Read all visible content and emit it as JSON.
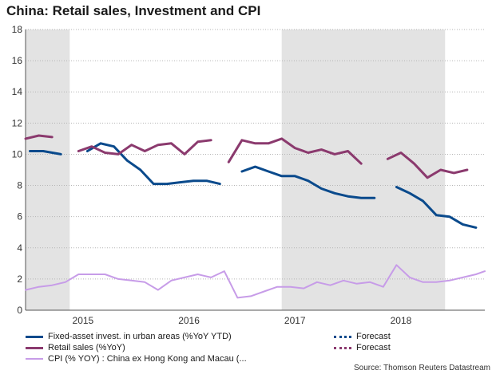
{
  "chart_data": {
    "type": "line",
    "title": "China: Retail sales, Investment and CPI",
    "ylim": [
      0,
      18
    ],
    "yticks": [
      0,
      2,
      4,
      6,
      8,
      10,
      12,
      14,
      16,
      18
    ],
    "year_labels": [
      {
        "label": "2015",
        "month": 6.5
      },
      {
        "label": "2016",
        "month": 18.5
      },
      {
        "label": "2017",
        "month": 30.5
      },
      {
        "label": "2018",
        "month": 42.5
      }
    ],
    "shaded_ranges": [
      [
        0,
        5
      ],
      [
        29,
        47.5
      ]
    ],
    "x_range": [
      0,
      52
    ],
    "series": [
      {
        "name": "Fixed-asset invest. in urban areas (%YoY YTD)",
        "color": "#0a4a8c",
        "points": [
          [
            0.5,
            10.2
          ],
          [
            2,
            10.2
          ],
          [
            4,
            10.0
          ],
          [
            null,
            null
          ],
          [
            7,
            10.2
          ],
          [
            8.5,
            10.7
          ],
          [
            10,
            10.5
          ],
          [
            11.5,
            9.6
          ],
          [
            13,
            9.0
          ],
          [
            14.5,
            8.1
          ],
          [
            16,
            8.1
          ],
          [
            17.5,
            8.2
          ],
          [
            19,
            8.3
          ],
          [
            20.5,
            8.3
          ],
          [
            22,
            8.1
          ],
          [
            null,
            null
          ],
          [
            24.5,
            8.9
          ],
          [
            26,
            9.2
          ],
          [
            27.5,
            8.9
          ],
          [
            29,
            8.6
          ],
          [
            30.5,
            8.6
          ],
          [
            32,
            8.3
          ],
          [
            33.5,
            7.8
          ],
          [
            35,
            7.5
          ],
          [
            36.5,
            7.3
          ],
          [
            38,
            7.2
          ],
          [
            39.5,
            7.2
          ],
          [
            null,
            null
          ],
          [
            42,
            7.9
          ],
          [
            43.5,
            7.5
          ],
          [
            45,
            7.0
          ],
          [
            46.5,
            6.1
          ],
          [
            48,
            6.0
          ],
          [
            49.5,
            5.5
          ],
          [
            51,
            5.3
          ]
        ]
      },
      {
        "name": "Retail sales (%YoY)",
        "color": "#8b3a6e",
        "points": [
          [
            0,
            11.0
          ],
          [
            1.5,
            11.2
          ],
          [
            3,
            11.1
          ],
          [
            null,
            null
          ],
          [
            6,
            10.2
          ],
          [
            7.5,
            10.5
          ],
          [
            9,
            10.1
          ],
          [
            10.5,
            10.0
          ],
          [
            12,
            10.6
          ],
          [
            13.5,
            10.2
          ],
          [
            15,
            10.6
          ],
          [
            16.5,
            10.7
          ],
          [
            18,
            10.0
          ],
          [
            19.5,
            10.8
          ],
          [
            21,
            10.9
          ],
          [
            null,
            null
          ],
          [
            23,
            9.5
          ],
          [
            24.5,
            10.9
          ],
          [
            26,
            10.7
          ],
          [
            27.5,
            10.7
          ],
          [
            29,
            11.0
          ],
          [
            30.5,
            10.4
          ],
          [
            32,
            10.1
          ],
          [
            33.5,
            10.3
          ],
          [
            35,
            10.0
          ],
          [
            36.5,
            10.2
          ],
          [
            38,
            9.4
          ],
          [
            null,
            null
          ],
          [
            41,
            9.7
          ],
          [
            42.5,
            10.1
          ],
          [
            44,
            9.4
          ],
          [
            45.5,
            8.5
          ],
          [
            47,
            9.0
          ],
          [
            48.5,
            8.8
          ],
          [
            50,
            9.0
          ]
        ]
      },
      {
        "name": "CPI (% YOY) : China ex Hong Kong and Macau (...",
        "color": "#c79ce8",
        "points": [
          [
            0,
            1.3
          ],
          [
            1.5,
            1.5
          ],
          [
            3,
            1.6
          ],
          [
            4.5,
            1.8
          ],
          [
            6,
            2.3
          ],
          [
            7.5,
            2.3
          ],
          [
            9,
            2.3
          ],
          [
            10.5,
            2.0
          ],
          [
            12,
            1.9
          ],
          [
            13.5,
            1.8
          ],
          [
            15,
            1.3
          ],
          [
            16.5,
            1.9
          ],
          [
            18,
            2.1
          ],
          [
            19.5,
            2.3
          ],
          [
            21,
            2.1
          ],
          [
            22.5,
            2.5
          ],
          [
            24,
            0.8
          ],
          [
            25.5,
            0.9
          ],
          [
            27,
            1.2
          ],
          [
            28.5,
            1.5
          ],
          [
            30,
            1.5
          ],
          [
            31.5,
            1.4
          ],
          [
            33,
            1.8
          ],
          [
            34.5,
            1.6
          ],
          [
            36,
            1.9
          ],
          [
            37.5,
            1.7
          ],
          [
            39,
            1.8
          ],
          [
            40.5,
            1.5
          ],
          [
            42,
            2.9
          ],
          [
            43.5,
            2.1
          ],
          [
            45,
            1.8
          ],
          [
            46.5,
            1.8
          ],
          [
            48,
            1.9
          ],
          [
            49.5,
            2.1
          ],
          [
            51,
            2.3
          ],
          [
            52,
            2.5
          ]
        ]
      }
    ]
  },
  "legend": {
    "items": [
      {
        "label": "Fixed-asset invest. in urban areas (%YoY YTD)",
        "color": "#0a4a8c",
        "style": "solid"
      },
      {
        "label": "Retail sales (%YoY)",
        "color": "#8b3a6e",
        "style": "solid"
      },
      {
        "label": "CPI (% YOY) : China ex Hong Kong and Macau (...",
        "color": "#c79ce8",
        "style": "solid"
      },
      {
        "label": "Forecast",
        "color": "#0a4a8c",
        "style": "dotted"
      },
      {
        "label": "Forecast",
        "color": "#8b3a6e",
        "style": "dotted"
      }
    ]
  },
  "source": "Source: Thomson Reuters Datastream"
}
